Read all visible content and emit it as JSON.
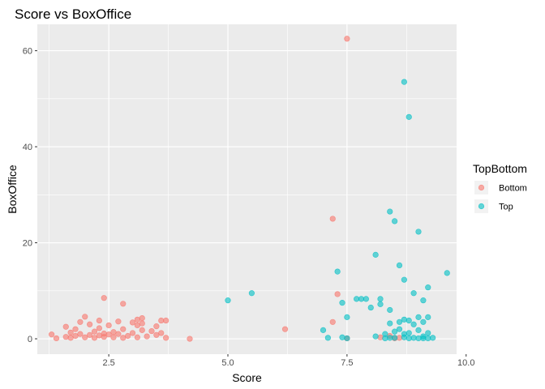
{
  "chart_data": {
    "type": "scatter",
    "title": "Score vs BoxOffice",
    "xlabel": "Score",
    "ylabel": "BoxOffice",
    "xlim": [
      1.0,
      9.8
    ],
    "ylim": [
      -3.2,
      65.5
    ],
    "x_ticks": [
      2.5,
      5.0,
      7.5,
      10.0
    ],
    "x_tick_labels": [
      "2.5",
      "5.0",
      "7.5",
      "10.0"
    ],
    "y_ticks": [
      0,
      20,
      40,
      60
    ],
    "y_tick_labels": [
      "0",
      "20",
      "40",
      "60"
    ],
    "grid": true,
    "legend": {
      "title": "TopBottom",
      "position": "right"
    },
    "series": [
      {
        "name": "Bottom",
        "color": "#F8766D",
        "points": [
          [
            1.3,
            0.9
          ],
          [
            1.4,
            0.1
          ],
          [
            1.6,
            0.4
          ],
          [
            1.6,
            2.5
          ],
          [
            1.7,
            0.2
          ],
          [
            1.7,
            1.3
          ],
          [
            1.8,
            0.6
          ],
          [
            1.8,
            2.0
          ],
          [
            1.9,
            1.0
          ],
          [
            1.9,
            3.5
          ],
          [
            2.0,
            4.6
          ],
          [
            2.0,
            0.3
          ],
          [
            2.1,
            0.8
          ],
          [
            2.1,
            3.0
          ],
          [
            2.2,
            1.5
          ],
          [
            2.2,
            0.2
          ],
          [
            2.3,
            2.2
          ],
          [
            2.3,
            0.7
          ],
          [
            2.3,
            3.8
          ],
          [
            2.4,
            1.1
          ],
          [
            2.4,
            0.4
          ],
          [
            2.4,
            8.5
          ],
          [
            2.5,
            2.8
          ],
          [
            2.5,
            0.9
          ],
          [
            2.6,
            1.4
          ],
          [
            2.6,
            0.3
          ],
          [
            2.7,
            3.6
          ],
          [
            2.7,
            1.0
          ],
          [
            2.8,
            7.3
          ],
          [
            2.8,
            0.2
          ],
          [
            2.8,
            2.0
          ],
          [
            2.9,
            0.6
          ],
          [
            3.0,
            3.4
          ],
          [
            3.0,
            1.2
          ],
          [
            3.1,
            4.0
          ],
          [
            3.1,
            2.8
          ],
          [
            3.1,
            0.3
          ],
          [
            3.2,
            1.8
          ],
          [
            3.2,
            3.2
          ],
          [
            3.2,
            4.3
          ],
          [
            3.3,
            0.5
          ],
          [
            3.4,
            1.6
          ],
          [
            3.5,
            2.6
          ],
          [
            3.5,
            0.8
          ],
          [
            3.6,
            3.8
          ],
          [
            3.6,
            1.2
          ],
          [
            3.7,
            0.2
          ],
          [
            3.7,
            3.8
          ],
          [
            4.2,
            0.0
          ],
          [
            6.2,
            2.0
          ],
          [
            7.2,
            25.0
          ],
          [
            7.2,
            3.5
          ],
          [
            7.3,
            9.3
          ],
          [
            7.5,
            62.5
          ],
          [
            7.5,
            0.1
          ],
          [
            8.2,
            0.3
          ],
          [
            8.4,
            0.6
          ],
          [
            8.5,
            0.1
          ],
          [
            8.6,
            0.2
          ]
        ]
      },
      {
        "name": "Top",
        "color": "#00BFC4",
        "points": [
          [
            5.0,
            8.0
          ],
          [
            5.5,
            9.5
          ],
          [
            7.0,
            1.8
          ],
          [
            7.1,
            0.2
          ],
          [
            7.3,
            14.0
          ],
          [
            7.4,
            7.5
          ],
          [
            7.4,
            0.3
          ],
          [
            7.5,
            0.1
          ],
          [
            7.5,
            4.5
          ],
          [
            7.7,
            8.3
          ],
          [
            7.8,
            8.3
          ],
          [
            7.9,
            8.3
          ],
          [
            8.0,
            6.5
          ],
          [
            8.1,
            17.5
          ],
          [
            8.1,
            0.5
          ],
          [
            8.2,
            7.2
          ],
          [
            8.2,
            8.3
          ],
          [
            8.3,
            0.1
          ],
          [
            8.3,
            1.0
          ],
          [
            8.4,
            3.2
          ],
          [
            8.4,
            26.5
          ],
          [
            8.4,
            6.0
          ],
          [
            8.4,
            0.2
          ],
          [
            8.5,
            24.5
          ],
          [
            8.5,
            1.5
          ],
          [
            8.5,
            0.2
          ],
          [
            8.6,
            15.3
          ],
          [
            8.6,
            3.5
          ],
          [
            8.6,
            2.0
          ],
          [
            8.7,
            53.5
          ],
          [
            8.7,
            12.3
          ],
          [
            8.7,
            4.0
          ],
          [
            8.7,
            1.0
          ],
          [
            8.7,
            0.3
          ],
          [
            8.8,
            46.2
          ],
          [
            8.8,
            3.8
          ],
          [
            8.8,
            1.2
          ],
          [
            8.8,
            0.1
          ],
          [
            8.9,
            9.5
          ],
          [
            8.9,
            3.0
          ],
          [
            8.9,
            0.2
          ],
          [
            9.0,
            22.3
          ],
          [
            9.0,
            4.5
          ],
          [
            9.0,
            1.8
          ],
          [
            9.0,
            0.1
          ],
          [
            9.1,
            8.0
          ],
          [
            9.1,
            0.5
          ],
          [
            9.1,
            0.1
          ],
          [
            9.1,
            3.5
          ],
          [
            9.2,
            10.7
          ],
          [
            9.2,
            4.5
          ],
          [
            9.2,
            1.2
          ],
          [
            9.2,
            0.1
          ],
          [
            9.3,
            0.2
          ],
          [
            9.6,
            13.7
          ]
        ]
      }
    ]
  }
}
